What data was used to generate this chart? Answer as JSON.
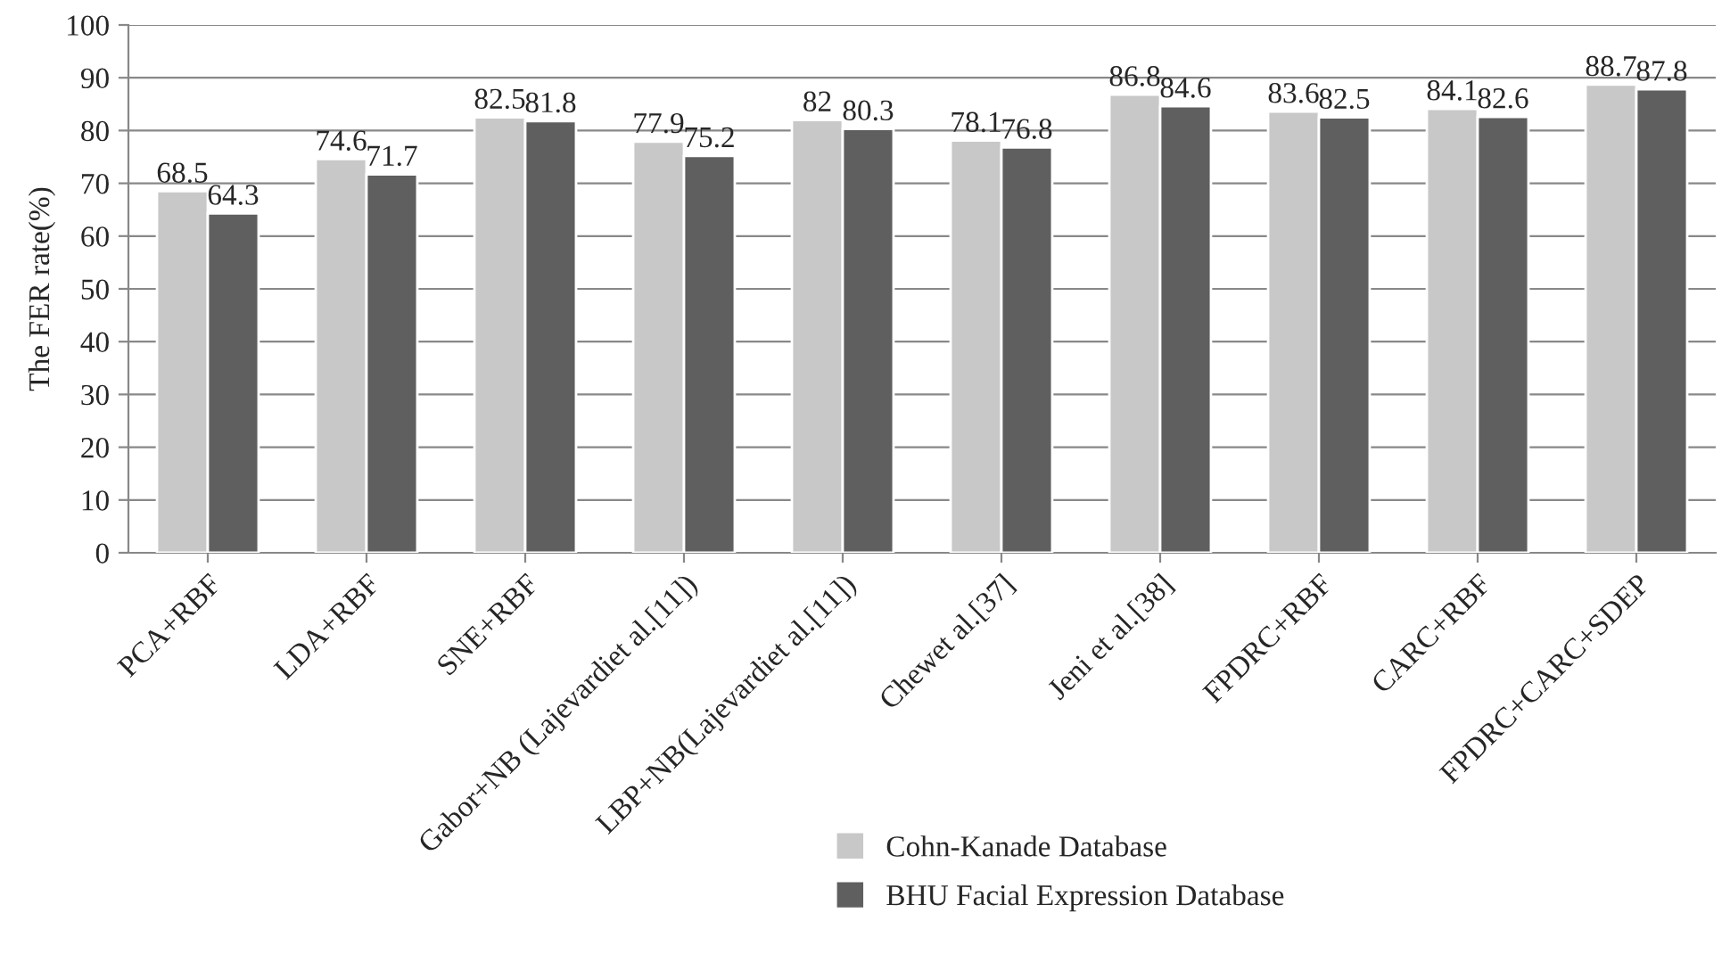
{
  "chart_data": {
    "type": "bar",
    "ylabel": "The FER rate(%)",
    "categories": [
      "PCA+RBF",
      "LDA+RBF",
      "SNE+RBF",
      "Gabor+NB (Lajevardiet al.[11])",
      "LBP+NB(Lajevardiet al.[11])",
      "Chewet al.[37]",
      "Jeni et al.[38]",
      "FPDRC+RBF",
      "CARC+RBF",
      "FPDRC+CARC+SDEP"
    ],
    "series": [
      {
        "name": "Cohn-Kanade Database",
        "color": "#c8c8c8",
        "values": [
          68.5,
          74.6,
          82.5,
          77.9,
          82,
          78.1,
          86.8,
          83.6,
          84.1,
          88.7
        ]
      },
      {
        "name": "BHU Facial Expression Database",
        "color": "#5f5f5f",
        "values": [
          64.3,
          71.7,
          81.8,
          75.2,
          80.3,
          76.8,
          84.6,
          82.5,
          82.6,
          87.8
        ]
      }
    ],
    "ylim": [
      0,
      100
    ],
    "yticks": [
      0,
      10,
      20,
      30,
      40,
      50,
      60,
      70,
      80,
      90,
      100
    ],
    "grid": "y",
    "legend": "bottom",
    "data_labels": true
  }
}
